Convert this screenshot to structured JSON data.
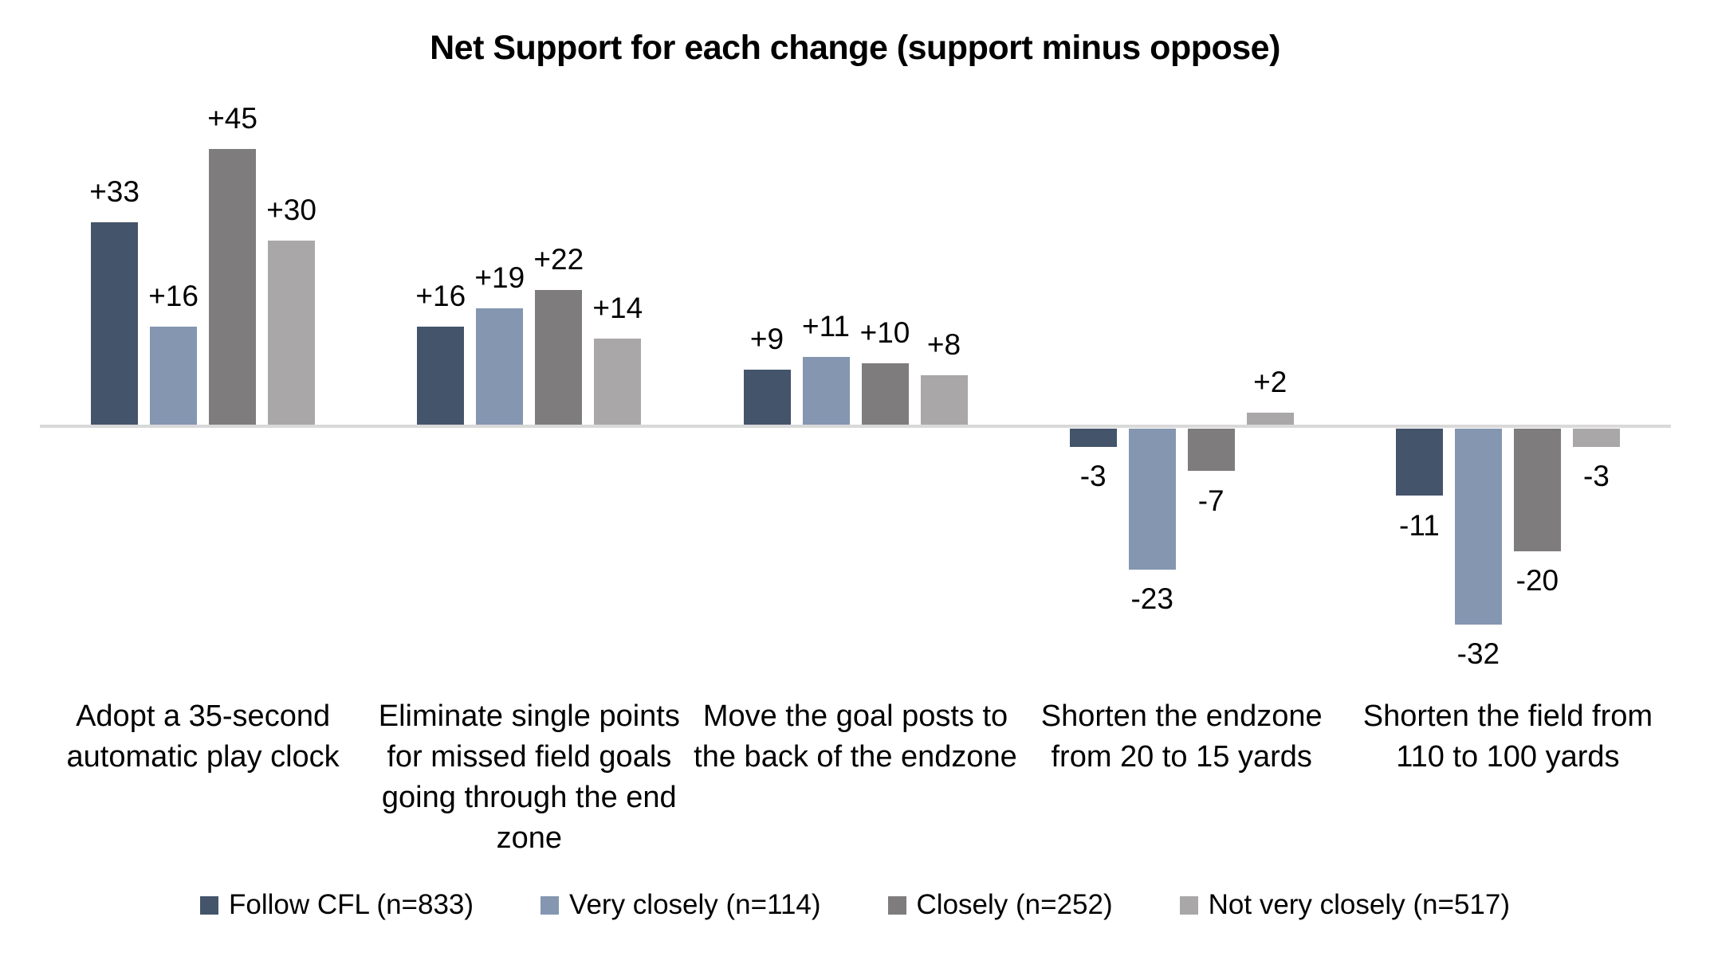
{
  "chart_data": {
    "type": "bar",
    "title": "Net Support for each change (support minus oppose)",
    "categories": [
      "Adopt a 35-second automatic play clock",
      "Eliminate single points for missed field goals going through the end zone",
      "Move the goal posts to the back of the endzone",
      "Shorten the endzone from 20 to 15 yards",
      "Shorten the field from 110 to 100 yards"
    ],
    "series": [
      {
        "name": "Follow CFL (n=833)",
        "color": "#44546A",
        "values": [
          33,
          16,
          9,
          -3,
          -11
        ],
        "labels": [
          "+33",
          "+16",
          "+9",
          "-3",
          "-11"
        ]
      },
      {
        "name": "Very closely (n=114)",
        "color": "#8496B0",
        "values": [
          16,
          19,
          11,
          -23,
          -32
        ],
        "labels": [
          "+16",
          "+19",
          "+11",
          "-23",
          "-32"
        ]
      },
      {
        "name": "Closely (n=252)",
        "color": "#7E7C7C",
        "values": [
          45,
          22,
          10,
          -7,
          -20
        ],
        "labels": [
          "+45",
          "+22",
          "+10",
          "-7",
          "-20"
        ]
      },
      {
        "name": "Not very closely (n=517)",
        "color": "#A9A7A7",
        "values": [
          30,
          14,
          8,
          2,
          -3
        ],
        "labels": [
          "+30",
          "+14",
          "+8",
          "+2",
          "-3"
        ]
      }
    ],
    "xlabel": "",
    "ylabel": "",
    "ylim": [
      -35,
      50
    ],
    "baseline": 0,
    "axis_color": "#D9D9D9",
    "grid": false,
    "y_axis_visible": false,
    "data_labels_visible": true,
    "legend_position": "bottom"
  }
}
